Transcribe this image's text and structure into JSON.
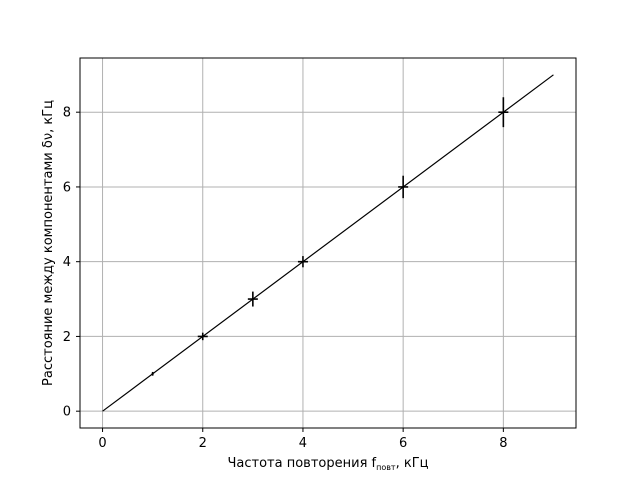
{
  "chart_data": {
    "type": "scatter",
    "title": "",
    "xlabel": {
      "main": "Частота повторения f",
      "sub": "повт",
      "rest": ", кГц"
    },
    "ylabel": "Расстояние между компонентами δν, кГц",
    "xlim": [
      -0.45,
      9.45
    ],
    "ylim": [
      -0.45,
      9.45
    ],
    "xticks": [
      0,
      2,
      4,
      6,
      8
    ],
    "yticks": [
      0,
      2,
      4,
      6,
      8
    ],
    "x_tick_labels": [
      "0",
      "2",
      "4",
      "6",
      "8"
    ],
    "y_tick_labels": [
      "0",
      "2",
      "4",
      "6",
      "8"
    ],
    "grid": true,
    "series": [
      {
        "kind": "errorbar",
        "color": "#000000",
        "points": [
          {
            "x": 1,
            "y": 1,
            "xerr": 0.02,
            "yerr": 0.05
          },
          {
            "x": 2,
            "y": 2,
            "xerr": 0.1,
            "yerr": 0.1
          },
          {
            "x": 3,
            "y": 3,
            "xerr": 0.1,
            "yerr": 0.2
          },
          {
            "x": 4,
            "y": 4,
            "xerr": 0.1,
            "yerr": 0.15
          },
          {
            "x": 6,
            "y": 6,
            "xerr": 0.1,
            "yerr": 0.3
          },
          {
            "x": 8,
            "y": 8,
            "xerr": 0.1,
            "yerr": 0.4
          }
        ]
      },
      {
        "kind": "line",
        "color": "#000000",
        "x": [
          0,
          9
        ],
        "y": [
          0,
          9
        ]
      }
    ]
  }
}
